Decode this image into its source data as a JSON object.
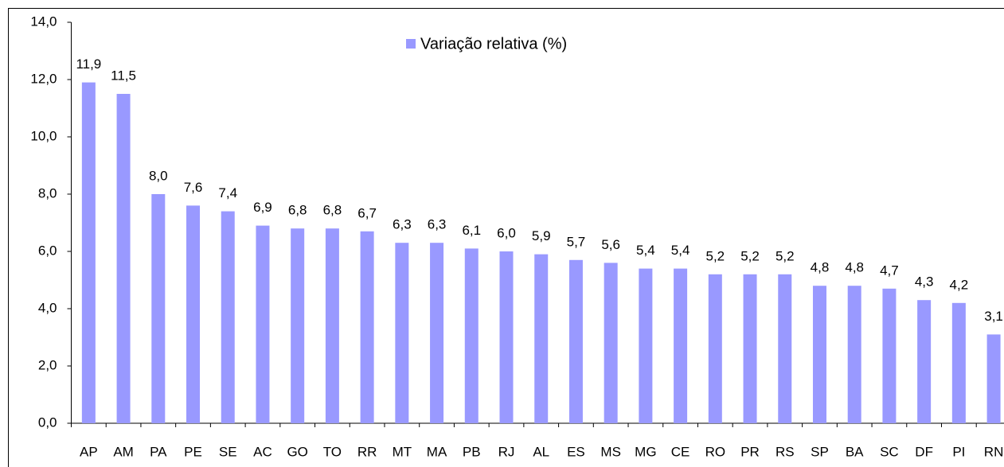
{
  "chart_data": {
    "type": "bar",
    "categories": [
      "AP",
      "AM",
      "PA",
      "PE",
      "SE",
      "AC",
      "GO",
      "TO",
      "RR",
      "MT",
      "MA",
      "PB",
      "RJ",
      "AL",
      "ES",
      "MS",
      "MG",
      "CE",
      "RO",
      "PR",
      "RS",
      "SP",
      "BA",
      "SC",
      "DF",
      "PI",
      "RN"
    ],
    "series": [
      {
        "name": "Variação relativa (%)",
        "color": "#9999ff",
        "values": [
          11.9,
          11.5,
          8.0,
          7.6,
          7.4,
          6.9,
          6.8,
          6.8,
          6.7,
          6.3,
          6.3,
          6.1,
          6.0,
          5.9,
          5.7,
          5.6,
          5.4,
          5.4,
          5.2,
          5.2,
          5.2,
          4.8,
          4.8,
          4.7,
          4.3,
          4.2,
          3.1
        ],
        "value_labels": [
          "11,9",
          "11,5",
          "8,0",
          "7,6",
          "7,4",
          "6,9",
          "6,8",
          "6,8",
          "6,7",
          "6,3",
          "6,3",
          "6,1",
          "6,0",
          "5,9",
          "5,7",
          "5,6",
          "5,4",
          "5,4",
          "5,2",
          "5,2",
          "5,2",
          "4,8",
          "4,8",
          "4,7",
          "4,3",
          "4,2",
          "3,1"
        ]
      }
    ],
    "ylim": [
      0,
      14
    ],
    "yticks": [
      {
        "value": 0,
        "label": "0,0"
      },
      {
        "value": 2,
        "label": "2,0"
      },
      {
        "value": 4,
        "label": "4,0"
      },
      {
        "value": 6,
        "label": "6,0"
      },
      {
        "value": 8,
        "label": "8,0"
      },
      {
        "value": 10,
        "label": "10,0"
      },
      {
        "value": 12,
        "label": "12,0"
      },
      {
        "value": 14,
        "label": "14,0"
      }
    ],
    "legend": "top"
  }
}
